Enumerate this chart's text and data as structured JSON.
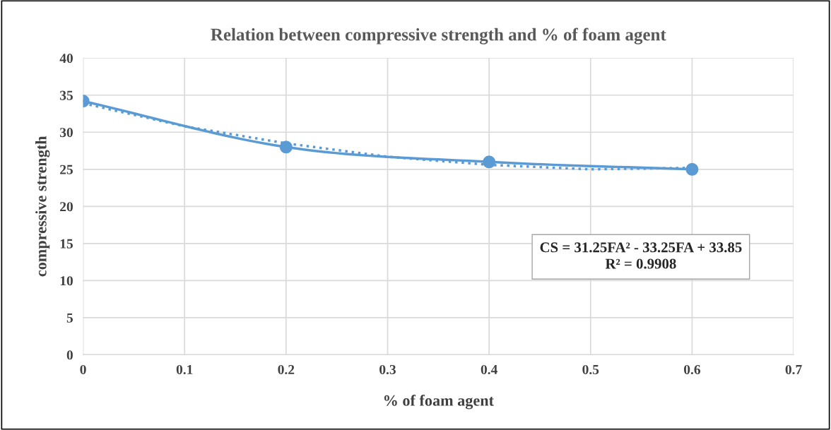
{
  "chart_data": {
    "type": "line",
    "title": "Relation between compressive strength and % of foam agent",
    "xlabel": "% of foam agent",
    "ylabel": "compressive strength",
    "x": [
      0,
      0.2,
      0.4,
      0.6
    ],
    "series": [
      {
        "color": "#5b9bd5",
        "values": [
          34.2,
          28.0,
          26.0,
          25.0
        ],
        "marker": "circle",
        "line_style": "solid"
      },
      {
        "type": "line",
        "color": "#5b9bd5",
        "x": [
          0,
          0.1,
          0.2,
          0.3,
          0.4,
          0.5,
          0.6
        ],
        "values": [
          33.9,
          30.8,
          28.5,
          26.7,
          25.6,
          25.0,
          25.2
        ],
        "marker": "none",
        "line_style": "dotted"
      }
    ],
    "xlim": [
      0,
      0.7
    ],
    "xticks": [
      0,
      0.1,
      0.2,
      0.3,
      0.4,
      0.5,
      0.6,
      0.7
    ],
    "ylim": [
      0,
      40
    ],
    "yticks": [
      0,
      5,
      10,
      15,
      20,
      25,
      30,
      35,
      40
    ],
    "grid": true,
    "legend": false,
    "annotations": [
      "CS = 31.25FA² - 33.25FA + 33.85\nR² = 0.9908"
    ]
  }
}
